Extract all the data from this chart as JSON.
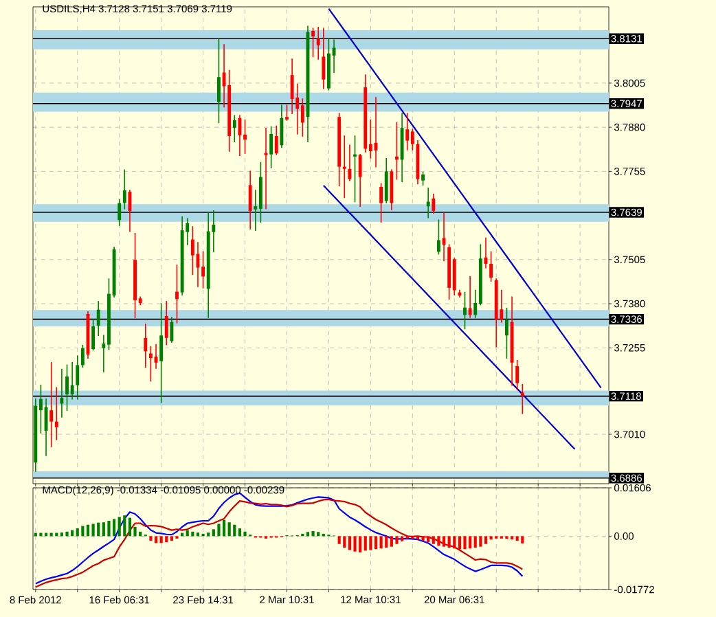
{
  "chart_data": [
    {
      "type": "candlestick",
      "title": "USDILS,H4 3.7128 3.7151 3.7069 3.7119",
      "tick_labels": "y",
      "grid": true,
      "categories": [
        null,
        null,
        null,
        null,
        null,
        null,
        null,
        null,
        null,
        null,
        null,
        null,
        null,
        null,
        null,
        null,
        null,
        null,
        null,
        null,
        null,
        null,
        null,
        null,
        null,
        null,
        null,
        null,
        null,
        null,
        null,
        null,
        null,
        null,
        null,
        null,
        null,
        null,
        null,
        null,
        null,
        null,
        null,
        null,
        null,
        null,
        null,
        null,
        null,
        null,
        null,
        null,
        null,
        null,
        null,
        null,
        null,
        null,
        null,
        null,
        null,
        null,
        null,
        null,
        null,
        null,
        null,
        null,
        null,
        null,
        null,
        null,
        null,
        null,
        null,
        null,
        null,
        null,
        null,
        null,
        null,
        null,
        null,
        null,
        null,
        null,
        null,
        null,
        null,
        null,
        null,
        null,
        null,
        null,
        null,
        null,
        null,
        null,
        null,
        null,
        null,
        null,
        null,
        null,
        null,
        null,
        null,
        null,
        null,
        null
      ],
      "ohlc": [
        [
          3.693,
          3.711,
          3.6905,
          3.7091
        ],
        [
          3.7078,
          3.7149,
          3.7014,
          3.711
        ],
        [
          3.702,
          3.711,
          3.695,
          3.7087
        ],
        [
          3.7078,
          3.7213,
          3.6975,
          3.7046
        ],
        [
          3.7046,
          3.7142,
          3.6995,
          3.703
        ],
        [
          3.7097,
          3.7194,
          3.7059,
          3.7113
        ],
        [
          3.7123,
          3.7206,
          3.7078,
          3.7174
        ],
        [
          3.7123,
          3.7213,
          3.711,
          3.7149
        ],
        [
          3.7149,
          3.7232,
          3.711,
          3.7206
        ],
        [
          3.7206,
          3.7262,
          3.72,
          3.7254
        ],
        [
          3.7351,
          3.7357,
          3.7226,
          3.7236
        ],
        [
          3.7251,
          3.7335,
          3.7249,
          3.7316
        ],
        [
          3.7318,
          3.7386,
          3.729,
          3.7363
        ],
        [
          3.7254,
          3.729,
          3.7187,
          3.7267
        ],
        [
          3.7264,
          3.745,
          3.7251,
          3.7408
        ],
        [
          3.7403,
          3.754,
          3.7399,
          3.7534
        ],
        [
          3.7617,
          3.7675,
          3.7602,
          3.7665
        ],
        [
          3.7665,
          3.7759,
          3.7649,
          3.7701
        ],
        [
          3.7697,
          3.7701,
          3.7585,
          3.7643
        ],
        [
          3.7504,
          3.7579,
          3.7341,
          3.739
        ],
        [
          3.7395,
          3.7399,
          3.7377,
          3.7382
        ],
        [
          3.7283,
          3.7322,
          3.72,
          3.7245
        ],
        [
          3.7239,
          3.7258,
          3.7161,
          3.7226
        ],
        [
          3.723,
          3.7264,
          3.7197,
          3.7213
        ],
        [
          3.7217,
          3.738,
          3.71,
          3.729
        ],
        [
          3.7345,
          3.7386,
          3.7264,
          3.7283
        ],
        [
          3.7274,
          3.7341,
          3.7271,
          3.7328
        ],
        [
          3.7414,
          3.7489,
          3.7326,
          3.7393
        ],
        [
          3.7412,
          3.7626,
          3.7405,
          3.7588
        ],
        [
          3.7583,
          3.7621,
          3.7547,
          3.7608
        ],
        [
          3.7562,
          3.7598,
          3.7463,
          3.7517
        ],
        [
          3.7521,
          3.7553,
          3.7429,
          3.7482
        ],
        [
          3.7485,
          3.7527,
          3.7425,
          3.7457
        ],
        [
          3.7422,
          3.7637,
          3.7341,
          3.7585
        ],
        [
          3.7583,
          3.7643,
          3.7527,
          3.7604
        ],
        [
          3.7951,
          3.8131,
          3.7893,
          3.8022
        ],
        [
          3.8035,
          3.8114,
          3.7938,
          3.7996
        ],
        [
          3.7999,
          3.8041,
          3.7812,
          3.7855
        ],
        [
          3.7878,
          3.7913,
          3.7839,
          3.79
        ],
        [
          3.7906,
          3.7913,
          3.78,
          3.7857
        ],
        [
          3.7859,
          3.79,
          3.7806,
          3.7845
        ],
        [
          3.7716,
          3.7755,
          3.7592,
          3.7643
        ],
        [
          3.7647,
          3.7701,
          3.7588,
          3.7656
        ],
        [
          3.7649,
          3.778,
          3.7611,
          3.7739
        ],
        [
          3.7807,
          3.7877,
          3.7649,
          3.7801
        ],
        [
          3.7803,
          3.7881,
          3.7765,
          3.7861
        ],
        [
          3.7855,
          3.7883,
          3.7803,
          3.7806
        ],
        [
          3.7829,
          3.7942,
          3.7823,
          3.7906
        ],
        [
          3.7909,
          3.7942,
          3.79,
          3.7902
        ],
        [
          3.8028,
          3.8073,
          3.7919,
          3.796
        ],
        [
          3.7964,
          3.8002,
          3.7861,
          3.7932
        ],
        [
          3.7942,
          3.796,
          3.7855,
          3.7893
        ],
        [
          3.7909,
          3.8166,
          3.7839,
          3.815
        ],
        [
          3.8153,
          3.816,
          3.808,
          3.8137
        ],
        [
          3.8131,
          3.8163,
          3.8073,
          3.8112
        ],
        [
          3.808,
          3.816,
          3.799,
          3.8015
        ],
        [
          3.799,
          3.8131,
          3.7986,
          3.8089
        ],
        [
          3.8083,
          3.8127,
          3.8035,
          3.8105
        ],
        [
          3.7909,
          3.7919,
          3.7714,
          3.7768
        ],
        [
          3.7768,
          3.7855,
          3.7681,
          3.7762
        ],
        [
          3.7762,
          3.7829,
          3.7729,
          3.7733
        ],
        [
          3.7797,
          3.7855,
          3.7669,
          3.7803
        ],
        [
          3.7801,
          3.7803,
          3.7656,
          3.7739
        ],
        [
          3.7993,
          3.8028,
          3.781,
          3.7819
        ],
        [
          3.7832,
          3.79,
          3.7793,
          3.7812
        ],
        [
          3.7836,
          3.7964,
          3.7768,
          3.7814
        ],
        [
          3.7711,
          3.772,
          3.7611,
          3.7665
        ],
        [
          3.7671,
          3.7791,
          3.7666,
          3.7755
        ],
        [
          3.7755,
          3.7759,
          3.7647,
          3.7665
        ],
        [
          3.7797,
          3.7893,
          3.7733,
          3.7788
        ],
        [
          3.7788,
          3.7919,
          3.7726,
          3.7878
        ],
        [
          3.7874,
          3.7919,
          3.7816,
          3.7842
        ],
        [
          3.7868,
          3.7874,
          3.7816,
          3.7832
        ],
        [
          3.7832,
          3.7842,
          3.772,
          3.7733
        ],
        [
          3.7729,
          3.7752,
          3.7716,
          3.7746
        ],
        [
          3.7656,
          3.7707,
          3.7624,
          3.7669
        ],
        [
          3.7678,
          3.769,
          3.7637,
          3.7643
        ],
        [
          3.7527,
          3.7617,
          3.7521,
          3.756
        ],
        [
          3.7566,
          3.7637,
          3.7502,
          3.7547
        ],
        [
          3.754,
          3.7547,
          3.7393,
          3.7425
        ],
        [
          3.7506,
          3.7508,
          3.7405,
          3.7418
        ],
        [
          3.7412,
          3.7418,
          3.7399,
          3.7403
        ],
        [
          3.7348,
          3.7412,
          3.7309,
          3.7369
        ],
        [
          3.7367,
          3.7457,
          3.7341,
          3.7348
        ],
        [
          3.7348,
          3.7418,
          3.7341,
          3.7382
        ],
        [
          3.738,
          3.7547,
          3.7377,
          3.7508
        ],
        [
          3.7511,
          3.7566,
          3.7482,
          3.7493
        ],
        [
          3.7493,
          3.7527,
          3.7444,
          3.7454
        ],
        [
          3.7447,
          3.745,
          3.7258,
          3.7335
        ],
        [
          3.7364,
          3.7418,
          3.7328,
          3.7335
        ],
        [
          3.729,
          3.7367,
          3.7226,
          3.7335
        ],
        [
          3.7328,
          3.7399,
          3.7149,
          3.7213
        ],
        [
          3.7203,
          3.7219,
          3.7136,
          3.7155
        ],
        [
          3.7128,
          3.7151,
          3.7069,
          3.7119
        ],
        null,
        null,
        null,
        null,
        null,
        null,
        null,
        null,
        null,
        null,
        null,
        null,
        null,
        null,
        null,
        null
      ],
      "series": [
        {
          "type": "line",
          "color": "#0000cc",
          "values": [
            null,
            null,
            null,
            null,
            null,
            null,
            null,
            null,
            null,
            null,
            null,
            null,
            null,
            null,
            null,
            null,
            null,
            null,
            null,
            null,
            null,
            null,
            null,
            null,
            null,
            null,
            null,
            null,
            null,
            null,
            null,
            null,
            null,
            null,
            null,
            null,
            null,
            null,
            null,
            null,
            null,
            null,
            null,
            null,
            null,
            null,
            null,
            null,
            null,
            null,
            null,
            null,
            null,
            null,
            null,
            null,
            3.8216,
            null,
            null,
            null,
            null,
            null,
            null,
            null,
            null,
            null,
            null,
            null,
            null,
            null,
            null,
            null,
            null,
            null,
            null,
            null,
            null,
            null,
            null,
            null,
            null,
            null,
            null,
            null,
            null,
            null,
            null,
            null,
            null,
            null,
            null,
            null,
            null,
            null,
            null,
            null,
            null,
            null,
            null,
            null,
            null,
            null,
            null,
            null,
            null,
            null,
            null,
            null,
            3.7142,
            null
          ]
        },
        {
          "type": "line",
          "color": "#0000cc",
          "values": [
            null,
            null,
            null,
            null,
            null,
            null,
            null,
            null,
            null,
            null,
            null,
            null,
            null,
            null,
            null,
            null,
            null,
            null,
            null,
            null,
            null,
            null,
            null,
            null,
            null,
            null,
            null,
            null,
            null,
            null,
            null,
            null,
            null,
            null,
            null,
            null,
            null,
            null,
            null,
            null,
            null,
            null,
            null,
            null,
            null,
            null,
            null,
            null,
            null,
            null,
            null,
            null,
            null,
            null,
            null,
            3.7715,
            null,
            null,
            null,
            null,
            null,
            null,
            null,
            null,
            null,
            null,
            null,
            null,
            null,
            null,
            null,
            null,
            null,
            null,
            null,
            null,
            null,
            null,
            null,
            null,
            null,
            null,
            null,
            null,
            null,
            null,
            null,
            null,
            null,
            null,
            null,
            null,
            null,
            null,
            null,
            null,
            null,
            null,
            null,
            null,
            null,
            null,
            null,
            3.6968,
            null,
            null,
            null,
            null,
            null,
            null
          ]
        }
      ],
      "ylim": [
        3.687,
        3.8221
      ],
      "yticks": [
        3.8005,
        {
          "value": 3.788,
          "label": "3.7880"
        },
        3.7755,
        3.7505,
        {
          "value": 3.738,
          "label": "3.7380"
        },
        3.7255,
        {
          "value": 3.701,
          "label": "3.7010"
        }
      ],
      "bands": [
        {
          "axis": "y",
          "from": 3.8101,
          "to": 3.8155,
          "color": "#add8e6"
        },
        {
          "axis": "y",
          "from": 3.7924,
          "to": 3.7978,
          "color": "#add8e6"
        },
        {
          "axis": "y",
          "from": 3.7612,
          "to": 3.7662,
          "color": "#add8e6"
        },
        {
          "axis": "y",
          "from": 3.7316,
          "to": 3.7362,
          "color": "#add8e6"
        },
        {
          "axis": "y",
          "from": 3.7092,
          "to": 3.7134,
          "color": "#add8e6"
        },
        {
          "axis": "y",
          "from": 3.6886,
          "to": 3.6905,
          "color": "#add8e6"
        }
      ],
      "ref_lines": [
        {
          "axis": "y",
          "value": 3.8131,
          "label": "3.8131",
          "color": "#000000"
        },
        {
          "axis": "y",
          "value": 3.7947,
          "label": "3.7947",
          "color": "#000000"
        },
        {
          "axis": "y",
          "value": 3.7639,
          "label": "3.7639",
          "color": "#000000"
        },
        {
          "axis": "y",
          "value": 3.7336,
          "label": "3.7336",
          "color": "#000000"
        },
        {
          "axis": "y",
          "value": 3.7118,
          "label": "3.7118",
          "color": "#000000"
        },
        {
          "axis": "y",
          "value": 3.6886,
          "label": "3.6886",
          "color": "#000000"
        }
      ]
    },
    {
      "type": "bar",
      "title": "MACD(12,26,9) -0.01334 -0.01095 0.00000 -0.00239",
      "grid": true,
      "categories": [
        "8 Feb 2012",
        null,
        null,
        null,
        null,
        null,
        null,
        null,
        null,
        null,
        null,
        null,
        null,
        null,
        null,
        null,
        "16 Feb 06:31",
        null,
        null,
        null,
        null,
        null,
        null,
        null,
        null,
        null,
        null,
        null,
        null,
        null,
        null,
        null,
        "23 Feb 14:31",
        null,
        null,
        null,
        null,
        null,
        null,
        null,
        null,
        null,
        null,
        null,
        null,
        null,
        null,
        null,
        "2 Mar 10:31",
        null,
        null,
        null,
        null,
        null,
        null,
        null,
        null,
        null,
        null,
        null,
        null,
        null,
        null,
        null,
        "12 Mar 10:31",
        null,
        null,
        null,
        null,
        null,
        null,
        null,
        null,
        null,
        null,
        null,
        null,
        null,
        null,
        null,
        "20 Mar 06:31",
        null,
        null,
        null,
        null,
        null,
        null,
        null,
        null,
        null,
        null,
        null,
        null,
        null,
        null,
        null,
        null,
        null,
        null,
        null,
        null,
        null,
        null,
        null,
        null,
        null,
        null,
        null,
        null,
        null
      ],
      "series": [
        {
          "type": "bar",
          "color": "#008000",
          "values": [
            0.0011,
            0.0011,
            0.0011,
            0.0011,
            0.0011,
            0.0012,
            0.0015,
            0.002,
            0.0026,
            0.0034,
            0.0038,
            0.0041,
            0.0045,
            0.0046,
            0.0051,
            0.0057,
            0.0064,
            0.0069,
            0.0061,
            0.0031,
            0.0015,
            0.0005,
            null,
            null,
            null,
            null,
            null,
            null,
            0.0011,
            0.002,
            0.0015,
            0.0012,
            0.0008,
            0.0012,
            0.0023,
            0.0041,
            0.0054,
            0.0046,
            0.0038,
            0.0026,
            0.0015,
            0.0005,
            null,
            null,
            null,
            null,
            null,
            null,
            0.0003,
            0.0002,
            0.0003,
            0.0008,
            0.0014,
            0.0017,
            0.0014,
            0.0008,
            0.0005,
            0.0002,
            null,
            null,
            null,
            null,
            null,
            null,
            null,
            null,
            null,
            null,
            null,
            null,
            null,
            null,
            null,
            null,
            null,
            null,
            null,
            null,
            null,
            null,
            null,
            null,
            null,
            null,
            null,
            null,
            null,
            null,
            null,
            null,
            null,
            null,
            null,
            null,
            null,
            null,
            null,
            null,
            null,
            null,
            null,
            null,
            null,
            null,
            null,
            null,
            null,
            null,
            null,
            null
          ]
        },
        {
          "type": "bar",
          "color": "#ff0000",
          "values": [
            null,
            null,
            null,
            null,
            null,
            null,
            null,
            null,
            null,
            null,
            null,
            null,
            null,
            null,
            null,
            null,
            null,
            null,
            null,
            null,
            null,
            null,
            -0.0015,
            -0.0023,
            -0.0023,
            -0.002,
            -0.0015,
            -0.0008,
            null,
            null,
            null,
            null,
            null,
            null,
            null,
            null,
            null,
            null,
            null,
            null,
            null,
            null,
            -0.0005,
            -0.0005,
            -0.0008,
            -0.0005,
            -0.0005,
            -0.0003,
            null,
            null,
            null,
            null,
            null,
            null,
            null,
            null,
            null,
            null,
            -0.0026,
            -0.0038,
            -0.0046,
            -0.0051,
            -0.0054,
            -0.0048,
            -0.0046,
            -0.0043,
            -0.0041,
            -0.0038,
            -0.0035,
            -0.0026,
            -0.0017,
            -0.0008,
            -0.0008,
            -0.0011,
            -0.0015,
            -0.002,
            -0.0026,
            -0.0032,
            -0.0035,
            -0.0038,
            -0.0041,
            -0.0043,
            -0.0043,
            -0.0041,
            -0.0038,
            -0.0035,
            -0.0026,
            -0.0011,
            -0.0008,
            -0.0008,
            -0.0009,
            -0.0011,
            -0.0015,
            -0.0024,
            null,
            null,
            null,
            null,
            null,
            null,
            null,
            null,
            null,
            null,
            null,
            null,
            null,
            null,
            null,
            null
          ]
        },
        {
          "type": "line",
          "color": "#0000ff",
          "values": [
            -0.0158,
            -0.015,
            -0.0143,
            -0.0138,
            -0.0134,
            -0.0129,
            -0.0124,
            -0.0114,
            -0.0101,
            -0.0086,
            -0.0071,
            -0.0057,
            -0.0046,
            -0.0034,
            -0.0023,
            -0.0011,
            0.0028,
            0.0058,
            0.008,
            0.0074,
            0.0058,
            0.0038,
            0.002,
            0.0011,
            0.0009,
            0.0006,
            0.0005,
            0.0015,
            0.0031,
            0.0043,
            0.0046,
            0.0049,
            0.0051,
            0.0051,
            0.0066,
            0.0092,
            0.0112,
            0.0127,
            0.0138,
            0.0143,
            0.0129,
            0.0115,
            0.0104,
            0.0101,
            0.01,
            0.01,
            0.01,
            0.01,
            0.0101,
            0.0104,
            0.0111,
            0.0117,
            0.0123,
            0.0127,
            0.013,
            0.0129,
            0.0127,
            0.012,
            0.0091,
            0.0077,
            0.0063,
            0.0054,
            0.0043,
            0.0031,
            0.0021,
            0.0012,
            0.0006,
            0.0,
            -0.0008,
            -0.0009,
            -0.0009,
            -0.0008,
            -0.0009,
            -0.0011,
            -0.0017,
            -0.0023,
            -0.0035,
            -0.0048,
            -0.0061,
            -0.0069,
            -0.0077,
            -0.0089,
            -0.01,
            -0.0109,
            -0.0117,
            -0.0111,
            -0.0104,
            -0.0097,
            -0.0097,
            -0.0097,
            -0.0098,
            -0.0103,
            -0.0115,
            -0.0133,
            null,
            null,
            null,
            null,
            null,
            null,
            null,
            null,
            null,
            null,
            null,
            null,
            null,
            null,
            null,
            null
          ]
        },
        {
          "type": "line",
          "color": "#cc0000",
          "values": [
            -0.0169,
            -0.0161,
            -0.0154,
            -0.0149,
            -0.0145,
            -0.0141,
            -0.0139,
            -0.0134,
            -0.0127,
            -0.012,
            -0.0109,
            -0.0098,
            -0.0091,
            -0.008,
            -0.0074,
            -0.0068,
            -0.0036,
            -0.0011,
            0.0019,
            0.0043,
            0.0043,
            0.0033,
            0.0035,
            0.0034,
            0.0032,
            0.0026,
            0.002,
            0.0023,
            0.002,
            0.0023,
            0.0031,
            0.0037,
            0.0043,
            0.0039,
            0.0043,
            0.0051,
            0.0058,
            0.0081,
            0.01,
            0.0117,
            0.0114,
            0.011,
            0.0109,
            0.0106,
            0.0108,
            0.0105,
            0.0105,
            0.0103,
            0.0098,
            0.0102,
            0.0108,
            0.0109,
            0.0109,
            0.011,
            0.0116,
            0.0121,
            0.0122,
            0.0118,
            0.0117,
            0.0115,
            0.0109,
            0.0105,
            0.0097,
            0.0079,
            0.0067,
            0.0055,
            0.0047,
            0.0038,
            0.0027,
            0.0017,
            0.0008,
            0.0,
            -0.0001,
            0.0,
            -0.0002,
            -0.0003,
            -0.0009,
            -0.0016,
            -0.0026,
            -0.0031,
            -0.0036,
            -0.0046,
            -0.0057,
            -0.0068,
            -0.0079,
            -0.0076,
            -0.0078,
            -0.0086,
            -0.0089,
            -0.0089,
            -0.0089,
            -0.0092,
            -0.01,
            -0.011,
            null,
            null,
            null,
            null,
            null,
            null,
            null,
            null,
            null,
            null,
            null,
            null,
            null,
            null,
            null,
            null
          ]
        }
      ],
      "ylim": [
        -0.01772,
        0.01606
      ],
      "yticks": [
        0.01606,
        {
          "value": 0,
          "label": "0.00"
        },
        -0.01772
      ]
    }
  ]
}
